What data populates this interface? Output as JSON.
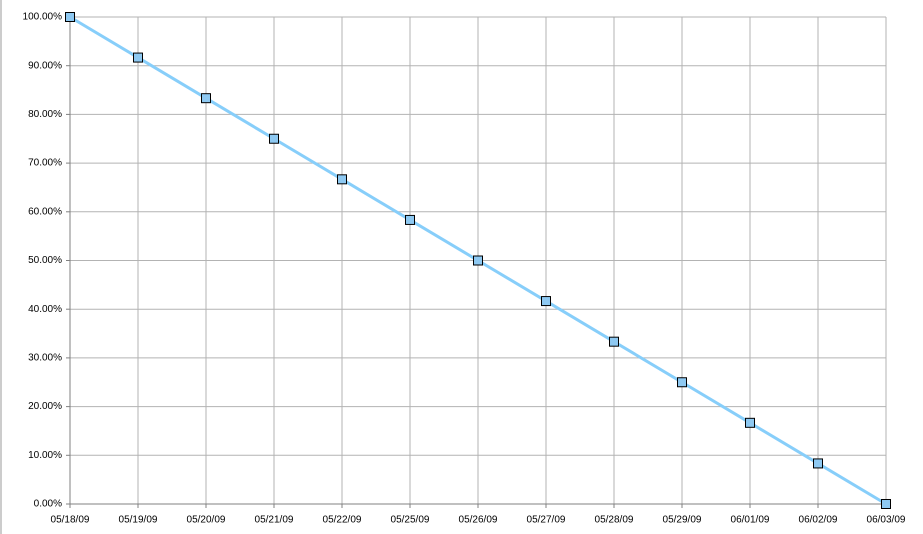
{
  "chart_data": {
    "type": "line",
    "categories": [
      "05/18/09",
      "05/19/09",
      "05/20/09",
      "05/21/09",
      "05/22/09",
      "05/25/09",
      "05/26/09",
      "05/27/09",
      "05/28/09",
      "05/29/09",
      "06/01/09",
      "06/02/09",
      "06/03/09"
    ],
    "series": [
      {
        "color": "#87cefa",
        "marker_color": "#8ec9f2",
        "values": [
          100,
          91.67,
          83.33,
          75,
          66.67,
          58.33,
          50,
          41.67,
          33.33,
          25,
          16.67,
          8.33,
          0
        ]
      }
    ],
    "ylim": [
      0,
      100
    ],
    "yticks": [
      {
        "value": 0,
        "label": "0.00%"
      },
      {
        "value": 10,
        "label": "10.00%"
      },
      {
        "value": 20,
        "label": "20.00%"
      },
      {
        "value": 30,
        "label": "30.00%"
      },
      {
        "value": 40,
        "label": "40.00%"
      },
      {
        "value": 50,
        "label": "50.00%"
      },
      {
        "value": 60,
        "label": "60.00%"
      },
      {
        "value": 70,
        "label": "70.00%"
      },
      {
        "value": 80,
        "label": "80.00%"
      },
      {
        "value": 90,
        "label": "90.00%"
      },
      {
        "value": 100,
        "label": "100.00%"
      }
    ],
    "grid": true
  }
}
